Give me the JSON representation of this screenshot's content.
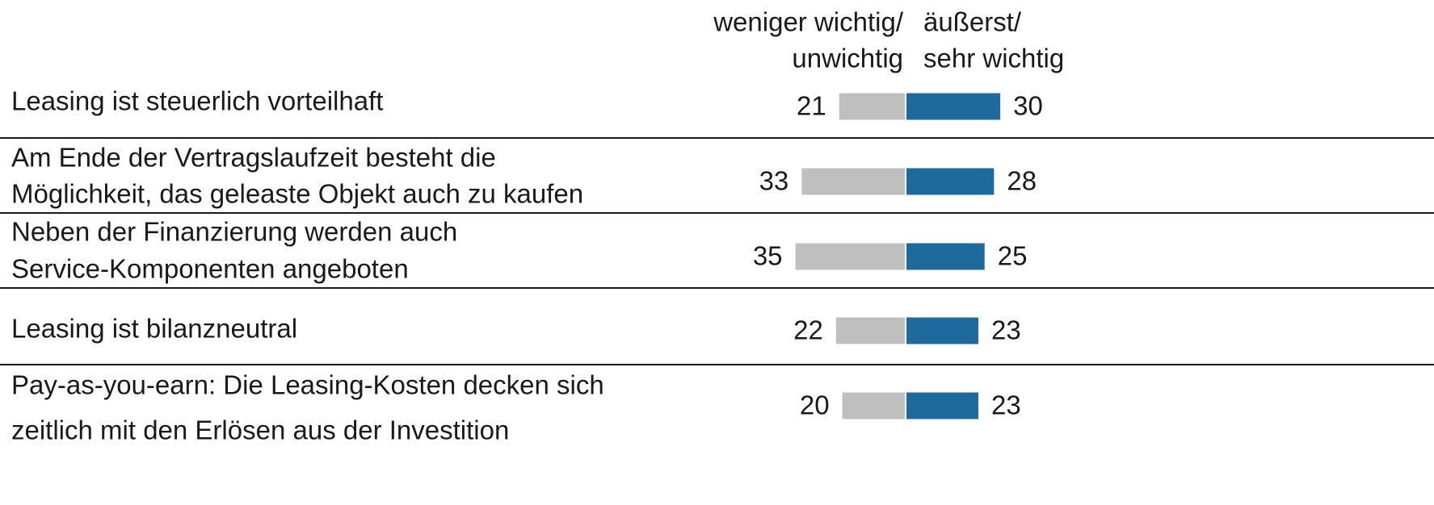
{
  "chart_data": {
    "type": "diverging_bar",
    "categories": [
      [
        "Leasing ist steuerlich vorteilhaft"
      ],
      [
        "Am Ende der Vertragslaufzeit besteht die",
        "Möglichkeit, das geleaste Objekt auch zu kaufen"
      ],
      [
        "Neben der Finanzierung werden auch",
        "Service-Komponenten angeboten"
      ],
      [
        "Leasing ist bilanzneutral"
      ],
      [
        "Pay-as-you-earn: Die Leasing-Kosten decken sich",
        "zeitlich mit den Erlösen aus der Investition"
      ]
    ],
    "series": [
      {
        "name": [
          "weniger wichtig/",
          "unwichtig"
        ],
        "color": "#bfbfbf",
        "values": [
          21,
          33,
          35,
          22,
          20
        ]
      },
      {
        "name": [
          "äußerst/",
          "sehr wichtig"
        ],
        "color": "#1f6a9c",
        "values": [
          30,
          28,
          25,
          23,
          23
        ]
      }
    ]
  }
}
